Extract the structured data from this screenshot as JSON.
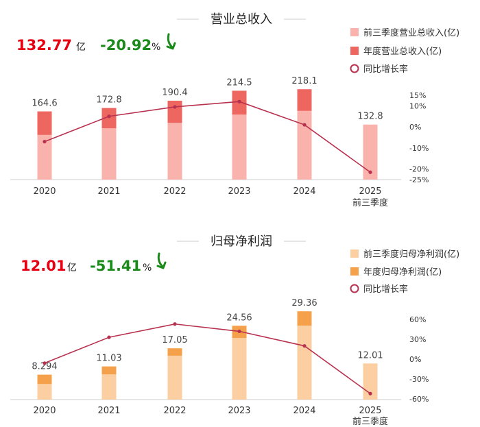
{
  "chart_data": [
    {
      "type": "bar",
      "title": "营业总收入",
      "headline": {
        "value": "132.77",
        "value_unit": "亿",
        "change": "-20.92",
        "change_unit": "%"
      },
      "legend": [
        "前三季度营业总收入(亿)",
        "年度营业总收入(亿)",
        "同比增长率"
      ],
      "categories": [
        "2020",
        "2021",
        "2022",
        "2023",
        "2024",
        "2025"
      ],
      "category_sub": [
        "",
        "",
        "",
        "",
        "",
        "前三季度"
      ],
      "series": [
        {
          "name": "前三季度营业总收入(亿)",
          "values": [
            108,
            124,
            137,
            157,
            166,
            132.8
          ]
        },
        {
          "name": "年度营业总收入(亿)",
          "values": [
            164.6,
            172.8,
            190.4,
            214.5,
            218.1,
            null
          ]
        },
        {
          "name": "同比增长率",
          "values": [
            -7,
            5,
            9.5,
            12,
            1,
            -21.5
          ]
        }
      ],
      "data_labels": [
        "164.6",
        "172.8",
        "190.4",
        "214.5",
        "218.1",
        "132.8"
      ],
      "ylim_left": [
        0,
        230
      ],
      "ylim_right": [
        -25,
        15
      ],
      "right_ticks": [
        "15%",
        "10%",
        "0%",
        "-10%",
        "-20%",
        "-25%"
      ],
      "colors": {
        "q3": "#f9b3ac",
        "annual": "#ee6660",
        "growth": "#b8314f",
        "headline_value": "#e60012",
        "headline_change": "#1a8a1a"
      }
    },
    {
      "type": "bar",
      "title": "归母净利润",
      "headline": {
        "value": "12.01",
        "value_unit": "亿",
        "change": "-51.41",
        "change_unit": "%"
      },
      "legend": [
        "前三季度归母净利润(亿)",
        "年度归母净利润(亿)",
        "同比增长率"
      ],
      "categories": [
        "2020",
        "2021",
        "2022",
        "2023",
        "2024",
        "2025"
      ],
      "category_sub": [
        "",
        "",
        "",
        "",
        "",
        "前三季度"
      ],
      "series": [
        {
          "name": "前三季度归母净利润(亿)",
          "values": [
            5.2,
            8.4,
            14.6,
            20.5,
            24.6,
            12.01
          ]
        },
        {
          "name": "年度归母净利润(亿)",
          "values": [
            8.294,
            11.03,
            17.05,
            24.56,
            29.36,
            null
          ]
        },
        {
          "name": "同比增长率",
          "values": [
            -6,
            33,
            53,
            42,
            20,
            -52
          ]
        }
      ],
      "data_labels": [
        "8.294",
        "11.03",
        "17.05",
        "24.56",
        "29.36",
        "12.01"
      ],
      "ylim_left": [
        0,
        31
      ],
      "ylim_right": [
        -60,
        60
      ],
      "right_ticks": [
        "60%",
        "30%",
        "0%",
        "-30%",
        "-60%"
      ],
      "colors": {
        "q3": "#fbcfa2",
        "annual": "#f5a04a",
        "growth": "#b8314f",
        "headline_value": "#e60012",
        "headline_change": "#1a8a1a"
      }
    }
  ]
}
